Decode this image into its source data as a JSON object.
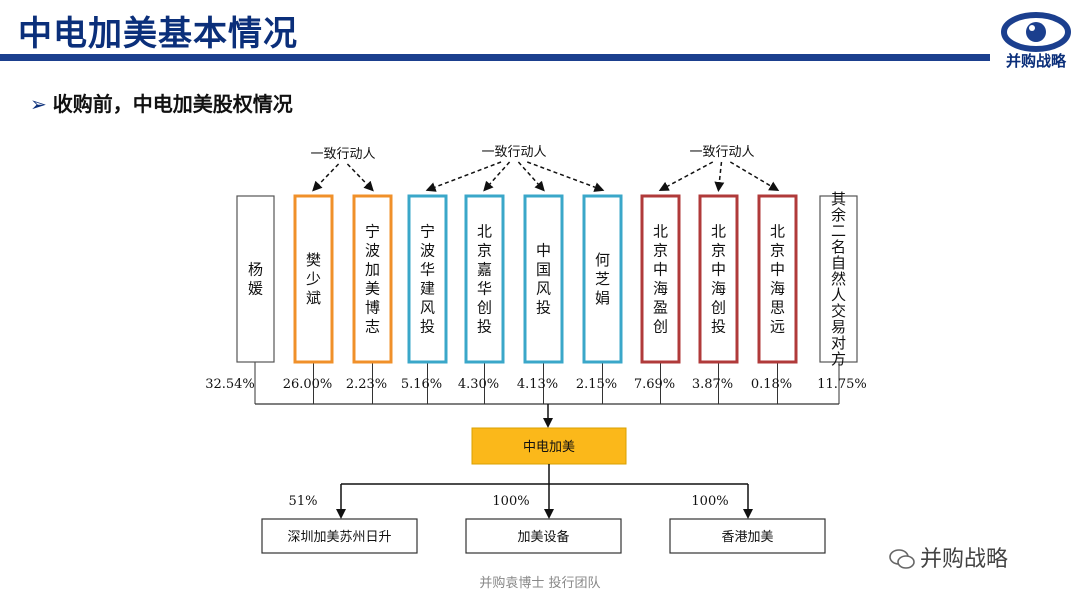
{
  "header": {
    "title": "中电加美基本情况",
    "logo_text": "并购战略",
    "logo_icon": "eye-icon"
  },
  "subtitle": "收购前，中电加美股权情况",
  "groups": [
    {
      "label": "一致行动人"
    },
    {
      "label": "一致行动人"
    },
    {
      "label": "一致行动人"
    }
  ],
  "shareholders": [
    {
      "name": "杨媛",
      "pct": "32.54%",
      "color": "#555555"
    },
    {
      "name": "樊少斌",
      "pct": "26.00%",
      "color": "#f0902a"
    },
    {
      "name": "宁波加美博志",
      "pct": "2.23%",
      "color": "#f0902a"
    },
    {
      "name": "宁波华建风投",
      "pct": "5.16%",
      "color": "#3aa7c9"
    },
    {
      "name": "北京嘉华创投",
      "pct": "4.30%",
      "color": "#3aa7c9"
    },
    {
      "name": "中国风投",
      "pct": "4.13%",
      "color": "#3aa7c9"
    },
    {
      "name": "何芝娟",
      "pct": "2.15%",
      "color": "#3aa7c9"
    },
    {
      "name": "北京中海盈创",
      "pct": "7.69%",
      "color": "#b03a3a"
    },
    {
      "name": "北京中海创投",
      "pct": "3.87%",
      "color": "#b03a3a"
    },
    {
      "name": "北京中海思远",
      "pct": "0.18%",
      "color": "#b03a3a"
    },
    {
      "name": "其余二名自然人交易对方",
      "pct": "11.75%",
      "color": "#555555"
    }
  ],
  "company": {
    "name": "中电加美",
    "fill": "#fbb81a"
  },
  "subsidiaries": [
    {
      "name": "深圳加美苏州日升",
      "pct": "51%"
    },
    {
      "name": "加美设备",
      "pct": "100%"
    },
    {
      "name": "香港加美",
      "pct": "100%"
    }
  ],
  "footer": "并购袁博士 投行团队",
  "watermark": "并购战略",
  "watermark_icon": "wechat-icon"
}
